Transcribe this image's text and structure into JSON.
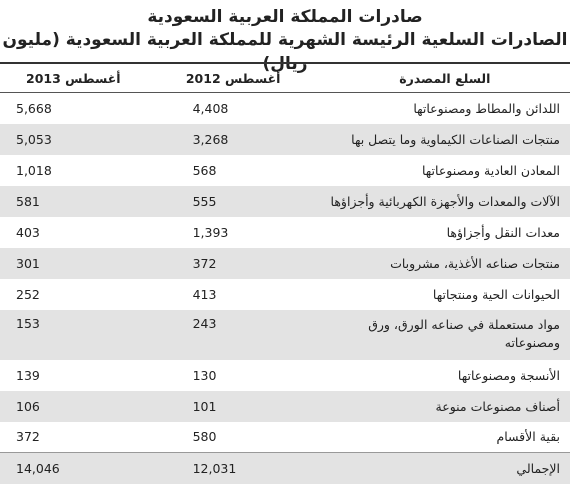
{
  "title_line1": "صادرات المملكة العربية السعودية",
  "title_line2": "الصادرات السلعية الرئيسة الشهرية للمملكة العربية السعودية (مليون ريال)",
  "table": {
    "headers": [
      "السلع المصدرة",
      "أغسطس 2012",
      "أغسطس 2013"
    ],
    "rows": [
      {
        "name": "اللدائن والمطاط ومصنوعاتها",
        "y2012": "4,408",
        "y2013": "5,668"
      },
      {
        "name": "منتجات الصناعات الكيماوية وما يتصل بها",
        "y2012": "3,268",
        "y2013": "5,053"
      },
      {
        "name": "المعادن العادية ومصنوعاتها",
        "y2012": "568",
        "y2013": "1,018"
      },
      {
        "name": "الآلات والمعدات والأجهزة الكهربائية وأجزاؤها",
        "y2012": "555",
        "y2013": "581"
      },
      {
        "name": "معدات النقل وأجزاؤها",
        "y2012": "1,393",
        "y2013": "403"
      },
      {
        "name": "منتجات صناعه الأغذية، مشروبات",
        "y2012": "372",
        "y2013": "301"
      },
      {
        "name": "الحيوانات الحية ومنتجاتها",
        "y2012": "413",
        "y2013": "252"
      },
      {
        "name": "مواد مستعملة في صناعه الورق، ورق ومصنوعاته",
        "y2012": "243",
        "y2013": "153"
      },
      {
        "name": "الأنسجة ومصنوعاتها",
        "y2012": "130",
        "y2013": "139"
      },
      {
        "name": "أصناف مصنوعات منوعة",
        "y2012": "101",
        "y2013": "106"
      },
      {
        "name": "بقية الأقسام",
        "y2012": "580",
        "y2013": "372"
      },
      {
        "name": "الإجمالي",
        "y2012": "12,031",
        "y2013": "14,046"
      }
    ]
  }
}
